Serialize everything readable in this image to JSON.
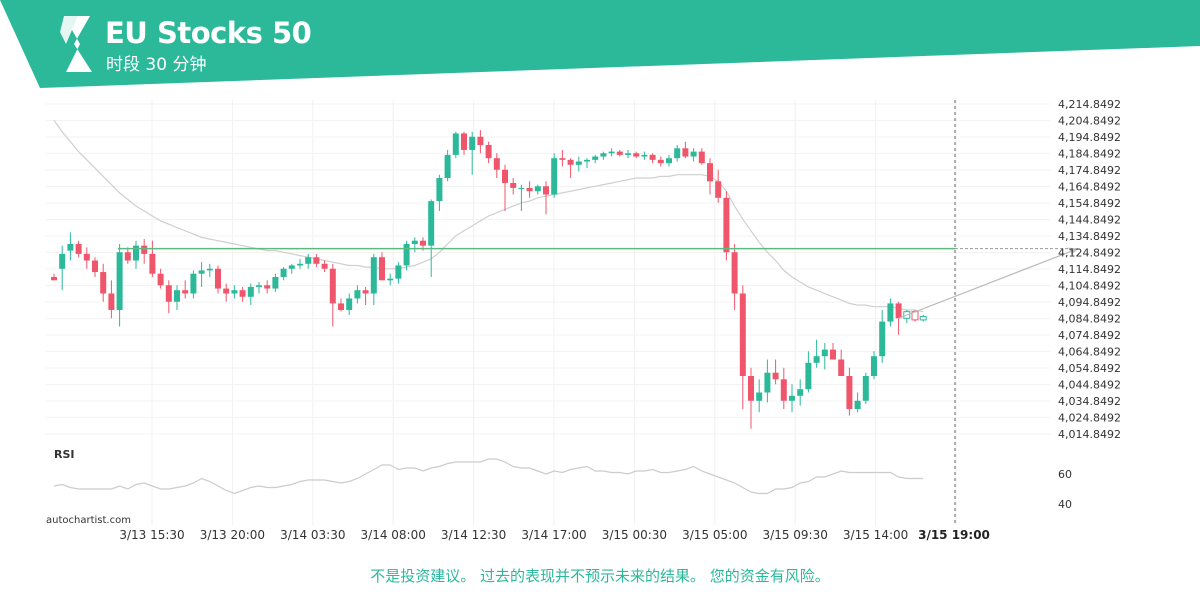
{
  "header": {
    "title": "EU Stocks 50",
    "subtitle": "时段 30 分钟",
    "logo_icon": "autochartist-logo-icon",
    "bg_color": "#2bb99a"
  },
  "chart_data": {
    "type": "candlestick",
    "symbol": "EU Stocks 50",
    "timeframe": "30 min",
    "x_tick_labels": [
      "3/13 15:30",
      "3/13 20:00",
      "3/14 03:30",
      "3/14 08:00",
      "3/14 12:30",
      "3/14 17:00",
      "3/15 00:30",
      "3/15 05:00",
      "3/15 09:30",
      "3/15 14:00",
      "3/15 19:00"
    ],
    "y_tick_labels": [
      "4,214.8492",
      "4,204.8492",
      "4,194.8492",
      "4,184.8492",
      "4,174.8492",
      "4,164.8492",
      "4,154.8492",
      "4,144.8492",
      "4,134.8492",
      "4,124.8492",
      "4,114.8492",
      "4,104.8492",
      "4,094.8492",
      "4,084.8492",
      "4,074.8492",
      "4,064.8492",
      "4,054.8492",
      "4,044.8492",
      "4,034.8492",
      "4,024.8492",
      "4,014.8492"
    ],
    "ylim": [
      4012,
      4218
    ],
    "resistance_level": 4127.2,
    "forecast_end": 4127.2,
    "current_time_label": "3/15 19:00",
    "up_color": "#2bb99a",
    "down_color": "#f0566b",
    "candles": [
      [
        4110,
        4112,
        4108,
        4108
      ],
      [
        4115,
        4129,
        4102,
        4124
      ],
      [
        4126,
        4137,
        4120,
        4130
      ],
      [
        4130,
        4132,
        4122,
        4124
      ],
      [
        4124,
        4128,
        4115,
        4120
      ],
      [
        4120,
        4122,
        4110,
        4113
      ],
      [
        4113,
        4118,
        4095,
        4100
      ],
      [
        4100,
        4108,
        4085,
        4090
      ],
      [
        4090,
        4130,
        4080,
        4125
      ],
      [
        4125,
        4128,
        4118,
        4120
      ],
      [
        4120,
        4132,
        4115,
        4129
      ],
      [
        4129,
        4133,
        4118,
        4124
      ],
      [
        4124,
        4132,
        4110,
        4112
      ],
      [
        4112,
        4115,
        4103,
        4105
      ],
      [
        4105,
        4108,
        4088,
        4095
      ],
      [
        4095,
        4105,
        4090,
        4102
      ],
      [
        4102,
        4108,
        4097,
        4100
      ],
      [
        4100,
        4114,
        4097,
        4112
      ],
      [
        4112,
        4119,
        4104,
        4114
      ],
      [
        4114,
        4118,
        4110,
        4115
      ],
      [
        4115,
        4117,
        4100,
        4103
      ],
      [
        4103,
        4106,
        4095,
        4100
      ],
      [
        4100,
        4105,
        4097,
        4102
      ],
      [
        4102,
        4104,
        4095,
        4098
      ],
      [
        4098,
        4106,
        4093,
        4104
      ],
      [
        4104,
        4107,
        4100,
        4105
      ],
      [
        4105,
        4108,
        4100,
        4103
      ],
      [
        4103,
        4112,
        4101,
        4110
      ],
      [
        4110,
        4116,
        4108,
        4115
      ],
      [
        4115,
        4118,
        4112,
        4117
      ],
      [
        4117,
        4121,
        4115,
        4118
      ],
      [
        4118,
        4124,
        4115,
        4122
      ],
      [
        4122,
        4124,
        4116,
        4118
      ],
      [
        4118,
        4120,
        4113,
        4115
      ],
      [
        4115,
        4118,
        4080,
        4094
      ],
      [
        4094,
        4097,
        4089,
        4090
      ],
      [
        4090,
        4100,
        4087,
        4097
      ],
      [
        4097,
        4105,
        4094,
        4102
      ],
      [
        4102,
        4104,
        4093,
        4100
      ],
      [
        4100,
        4124,
        4093,
        4122
      ],
      [
        4122,
        4125,
        4108,
        4108
      ],
      [
        4108,
        4112,
        4105,
        4109
      ],
      [
        4109,
        4119,
        4106,
        4117
      ],
      [
        4117,
        4132,
        4114,
        4130
      ],
      [
        4130,
        4134,
        4125,
        4132
      ],
      [
        4132,
        4134,
        4126,
        4129
      ],
      [
        4129,
        4157,
        4110,
        4156
      ],
      [
        4156,
        4172,
        4150,
        4170
      ],
      [
        4170,
        4187,
        4168,
        4184
      ],
      [
        4184,
        4198,
        4182,
        4197
      ],
      [
        4197,
        4198,
        4184,
        4187
      ],
      [
        4187,
        4198,
        4172,
        4195
      ],
      [
        4195,
        4199,
        4185,
        4190
      ],
      [
        4190,
        4192,
        4179,
        4182
      ],
      [
        4182,
        4185,
        4170,
        4175
      ],
      [
        4175,
        4178,
        4150,
        4167
      ],
      [
        4167,
        4170,
        4160,
        4164
      ],
      [
        4164,
        4166,
        4150,
        4164
      ],
      [
        4164,
        4168,
        4158,
        4162
      ],
      [
        4162,
        4166,
        4160,
        4165
      ],
      [
        4165,
        4168,
        4148,
        4160
      ],
      [
        4160,
        4185,
        4158,
        4182
      ],
      [
        4182,
        4187,
        4177,
        4181
      ],
      [
        4181,
        4182,
        4170,
        4178
      ],
      [
        4178,
        4183,
        4174,
        4180
      ],
      [
        4180,
        4182,
        4176,
        4181
      ],
      [
        4181,
        4184,
        4179,
        4183
      ],
      [
        4183,
        4186,
        4181,
        4185
      ],
      [
        4185,
        4188,
        4183,
        4186
      ],
      [
        4186,
        4187,
        4183,
        4184
      ],
      [
        4184,
        4187,
        4182,
        4185
      ],
      [
        4185,
        4186,
        4182,
        4183
      ],
      [
        4183,
        4186,
        4181,
        4184
      ],
      [
        4184,
        4185,
        4179,
        4181
      ],
      [
        4181,
        4183,
        4177,
        4179
      ],
      [
        4179,
        4184,
        4177,
        4182
      ],
      [
        4182,
        4190,
        4180,
        4188
      ],
      [
        4188,
        4192,
        4182,
        4183
      ],
      [
        4183,
        4188,
        4180,
        4186
      ],
      [
        4186,
        4188,
        4178,
        4179
      ],
      [
        4179,
        4182,
        4160,
        4168
      ],
      [
        4168,
        4175,
        4155,
        4158
      ],
      [
        4158,
        4162,
        4120,
        4125
      ],
      [
        4125,
        4130,
        4090,
        4100
      ],
      [
        4100,
        4105,
        4030,
        4050
      ],
      [
        4050,
        4055,
        4018,
        4035
      ],
      [
        4035,
        4048,
        4028,
        4040
      ],
      [
        4040,
        4060,
        4034,
        4052
      ],
      [
        4052,
        4060,
        4045,
        4048
      ],
      [
        4048,
        4055,
        4030,
        4035
      ],
      [
        4035,
        4045,
        4028,
        4038
      ],
      [
        4038,
        4048,
        4032,
        4042
      ],
      [
        4042,
        4065,
        4040,
        4058
      ],
      [
        4058,
        4072,
        4055,
        4062
      ],
      [
        4062,
        4070,
        4054,
        4066
      ],
      [
        4066,
        4070,
        4060,
        4060
      ],
      [
        4060,
        4066,
        4050,
        4050
      ],
      [
        4050,
        4055,
        4026,
        4030
      ],
      [
        4030,
        4040,
        4028,
        4035
      ],
      [
        4035,
        4052,
        4033,
        4050
      ],
      [
        4050,
        4065,
        4048,
        4062
      ],
      [
        4062,
        4090,
        4058,
        4083
      ],
      [
        4083,
        4097,
        4080,
        4094
      ],
      [
        4094,
        4095,
        4075,
        4085
      ],
      [
        4085,
        4090,
        4082,
        4089
      ],
      [
        4089,
        4090,
        4083,
        4084
      ],
      [
        4084,
        4087,
        4083,
        4086
      ]
    ],
    "ma_values": [
      4205,
      4198,
      4192,
      4186,
      4181,
      4176,
      4171,
      4166,
      4161,
      4157,
      4153,
      4150,
      4147,
      4144,
      4142,
      4140,
      4138,
      4136,
      4134,
      4133,
      4132,
      4131,
      4130,
      4129,
      4128,
      4127,
      4126,
      4126,
      4125,
      4124,
      4123,
      4122,
      4121,
      4120,
      4119,
      4118,
      4117,
      4117,
      4116,
      4116,
      4115,
      4115,
      4115,
      4116,
      4117,
      4119,
      4121,
      4125,
      4130,
      4135,
      4138,
      4141,
      4144,
      4147,
      4149,
      4151,
      4153,
      4155,
      4156,
      4158,
      4159,
      4160,
      4161,
      4162,
      4163,
      4164,
      4165,
      4166,
      4167,
      4168,
      4169,
      4170,
      4170,
      4170,
      4171,
      4171,
      4172,
      4172,
      4172,
      4172,
      4171,
      4168,
      4162,
      4153,
      4145,
      4138,
      4131,
      4125,
      4120,
      4114,
      4110,
      4107,
      4104,
      4102,
      4100,
      4098,
      4096,
      4094,
      4093,
      4093,
      4092,
      4092,
      4092,
      4091,
      4090,
      4090,
      4089
    ],
    "rsi_values": [
      52,
      53,
      51,
      50,
      50,
      50,
      50,
      50,
      52,
      50,
      53,
      54,
      52,
      50,
      50,
      51,
      52,
      54,
      57,
      55,
      52,
      49,
      47,
      49,
      51,
      52,
      51,
      51,
      52,
      53,
      55,
      56,
      56,
      56,
      55,
      54,
      55,
      57,
      60,
      63,
      66,
      66,
      63,
      64,
      64,
      62,
      64,
      65,
      67,
      68,
      68,
      68,
      68,
      70,
      70,
      68,
      65,
      64,
      64,
      62,
      60,
      62,
      61,
      63,
      64,
      65,
      62,
      62,
      61,
      61,
      60,
      62,
      62,
      63,
      61,
      61,
      62,
      63,
      65,
      62,
      60,
      58,
      56,
      54,
      51,
      48,
      47,
      47,
      50,
      50,
      51,
      54,
      55,
      58,
      58,
      60,
      62,
      61,
      61,
      61,
      61,
      61,
      61,
      58,
      57,
      57,
      57
    ],
    "rsi_ylim": [
      30,
      80
    ],
    "rsi_ticks": [
      "60",
      "40"
    ],
    "rsi_label": "RSI"
  },
  "footer": {
    "watermark": "autochartist.com",
    "disclaimer": "不是投资建议。 过去的表现并不预示未来的结果。 您的资金有风险。"
  }
}
